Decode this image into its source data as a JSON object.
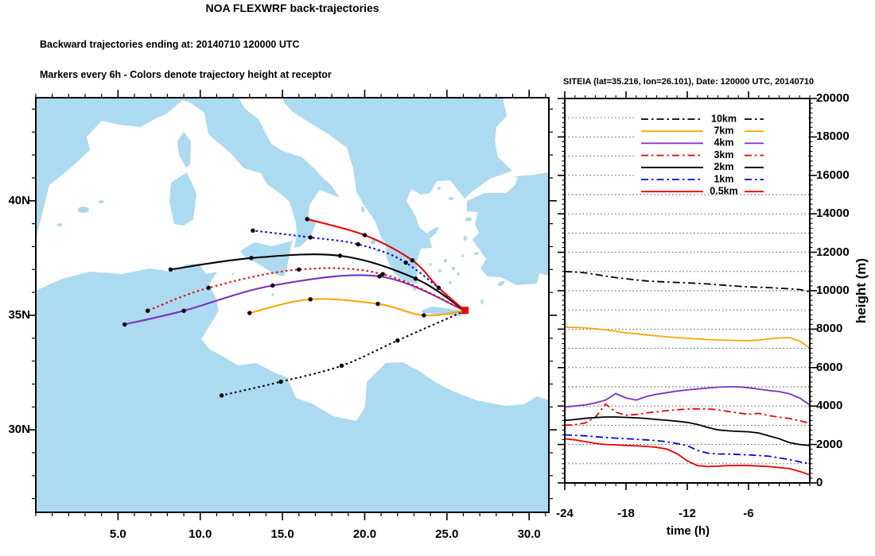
{
  "header": {
    "title": "NOA FLEXWRF back-trajectories",
    "subtitle1": "Backward trajectories ending at: 20140710  120000 UTC",
    "subtitle2": "Markers every 6h - Colors denote trajectory height at receptor"
  },
  "colors": {
    "land": "#acdaf0",
    "sea": "#ffffff",
    "frame": "#000000",
    "grid": "#444444",
    "receptor_marker": "#ee0000",
    "trajectory_marker": "#000000"
  },
  "chart_data": [
    {
      "type": "line",
      "name": "trajectory-map",
      "xlim": [
        0,
        31.2
      ],
      "ylim": [
        26.4,
        44.5
      ],
      "x_ticks": [
        5,
        10,
        15,
        20,
        25,
        30
      ],
      "x_tick_labels": [
        "5.0",
        "10.0",
        "15.0",
        "20.0",
        "25.0",
        "30.0"
      ],
      "y_ticks": [
        30,
        35,
        40
      ],
      "y_tick_labels": [
        "30N",
        "35N",
        "40N"
      ],
      "receptor": {
        "name": "SITEIA",
        "lat": 35.216,
        "lon": 26.101
      },
      "marker_interval_hours": 6,
      "series": [
        {
          "name": "10km",
          "color": "#000000",
          "style": "dotted",
          "points": [
            [
              26.1,
              35.2
            ],
            [
              22.0,
              33.9
            ],
            [
              18.6,
              32.8
            ],
            [
              14.9,
              32.1
            ],
            [
              11.3,
              31.5
            ]
          ]
        },
        {
          "name": "7km",
          "color": "#ffa400",
          "style": "solid",
          "points": [
            [
              26.1,
              35.2
            ],
            [
              23.6,
              35.0
            ],
            [
              20.8,
              35.5
            ],
            [
              16.7,
              35.7
            ],
            [
              13.0,
              35.1
            ]
          ]
        },
        {
          "name": "4km",
          "color": "#7d2dcd",
          "style": "solid",
          "points": [
            [
              26.1,
              35.2
            ],
            [
              20.9,
              36.7
            ],
            [
              14.4,
              36.3
            ],
            [
              9.0,
              35.2
            ],
            [
              5.4,
              34.6
            ]
          ]
        },
        {
          "name": "3km",
          "color": "#ee0000",
          "style": "dotted",
          "points": [
            [
              26.1,
              35.2
            ],
            [
              21.1,
              36.8
            ],
            [
              16.0,
              37.0
            ],
            [
              10.5,
              36.2
            ],
            [
              6.8,
              35.2
            ]
          ]
        },
        {
          "name": "2km",
          "color": "#000000",
          "style": "solid",
          "points": [
            [
              26.1,
              35.2
            ],
            [
              23.1,
              36.6
            ],
            [
              18.5,
              37.6
            ],
            [
              13.1,
              37.5
            ],
            [
              8.2,
              37.0
            ]
          ]
        },
        {
          "name": "1km",
          "color": "#0000ee",
          "style": "dotted",
          "points": [
            [
              26.1,
              35.2
            ],
            [
              22.5,
              37.3
            ],
            [
              19.6,
              38.1
            ],
            [
              16.7,
              38.4
            ],
            [
              13.2,
              38.7
            ]
          ]
        },
        {
          "name": "0.5km",
          "color": "#ee0000",
          "style": "solid",
          "points": [
            [
              26.1,
              35.2
            ],
            [
              24.5,
              36.2
            ],
            [
              22.9,
              37.4
            ],
            [
              20.0,
              38.5
            ],
            [
              16.5,
              39.2
            ]
          ]
        }
      ]
    },
    {
      "type": "line",
      "name": "trajectory-heights",
      "title": "SITEIA (lat=35.216,  lon=26.101), Date: 120000 UTC, 20140710",
      "xlabel": "time (h)",
      "ylabel": "height (m)",
      "xlim": [
        -24,
        0
      ],
      "ylim": [
        0,
        20000
      ],
      "grid_interval": 1000,
      "x_ticks": [
        -24,
        -18,
        -12,
        -6
      ],
      "x_tick_labels": [
        "-24",
        "-18",
        "-12",
        "-6"
      ],
      "y_ticks": [
        0,
        2000,
        4000,
        6000,
        8000,
        10000,
        12000,
        14000,
        16000,
        18000,
        20000
      ],
      "y_tick_labels": [
        "0",
        "2000",
        "4000",
        "6000",
        "8000",
        "10000",
        "12000",
        "14000",
        "16000",
        "18000",
        "20000"
      ],
      "legend_position": "top-inside",
      "x_hours": [
        -24,
        -23,
        -22,
        -21,
        -20,
        -19,
        -18,
        -17,
        -16,
        -15,
        -14,
        -13,
        -12,
        -11,
        -10,
        -9,
        -8,
        -7,
        -6,
        -5,
        -4,
        -3,
        -2,
        -1,
        0
      ],
      "series": [
        {
          "name": "10km",
          "color": "#000000",
          "style": "dashdot",
          "values": [
            11000,
            10970,
            10930,
            10850,
            10760,
            10680,
            10620,
            10560,
            10510,
            10480,
            10450,
            10430,
            10410,
            10380,
            10350,
            10310,
            10270,
            10230,
            10200,
            10180,
            10160,
            10130,
            10100,
            10060,
            9950
          ]
        },
        {
          "name": "7km",
          "color": "#ffa400",
          "style": "solid",
          "values": [
            8100,
            8090,
            8060,
            8020,
            7960,
            7890,
            7810,
            7760,
            7700,
            7650,
            7600,
            7560,
            7520,
            7490,
            7460,
            7440,
            7420,
            7410,
            7400,
            7430,
            7490,
            7540,
            7560,
            7380,
            7020
          ]
        },
        {
          "name": "4km",
          "color": "#7d2dcd",
          "style": "solid",
          "values": [
            3950,
            4000,
            4060,
            4160,
            4310,
            4650,
            4420,
            4310,
            4500,
            4610,
            4700,
            4780,
            4840,
            4890,
            4940,
            4980,
            5000,
            5000,
            4950,
            4880,
            4810,
            4750,
            4640,
            4420,
            4060
          ]
        },
        {
          "name": "3km",
          "color": "#ee0000",
          "style": "dashdot",
          "values": [
            3000,
            3030,
            3120,
            3420,
            4100,
            3680,
            3520,
            3560,
            3640,
            3700,
            3760,
            3810,
            3840,
            3850,
            3850,
            3800,
            3720,
            3640,
            3570,
            3620,
            3500,
            3420,
            3350,
            3240,
            3100
          ]
        },
        {
          "name": "2km",
          "color": "#000000",
          "style": "solid",
          "values": [
            3250,
            3300,
            3360,
            3400,
            3430,
            3430,
            3410,
            3390,
            3350,
            3300,
            3260,
            3210,
            3150,
            3040,
            2890,
            2760,
            2710,
            2680,
            2660,
            2600,
            2450,
            2300,
            2100,
            2000,
            1950
          ]
        },
        {
          "name": "1km",
          "color": "#0000ee",
          "style": "dashdot",
          "values": [
            2500,
            2480,
            2450,
            2410,
            2360,
            2330,
            2300,
            2270,
            2240,
            2200,
            2140,
            2050,
            1940,
            1690,
            1550,
            1510,
            1500,
            1480,
            1460,
            1430,
            1390,
            1300,
            1220,
            1100,
            1000
          ]
        },
        {
          "name": "0.5km",
          "color": "#ee0000",
          "style": "solid",
          "values": [
            2300,
            2240,
            2150,
            2060,
            2000,
            1980,
            1950,
            1930,
            1900,
            1850,
            1760,
            1520,
            1150,
            900,
            850,
            870,
            900,
            905,
            900,
            880,
            850,
            800,
            750,
            600,
            420
          ]
        }
      ]
    }
  ]
}
